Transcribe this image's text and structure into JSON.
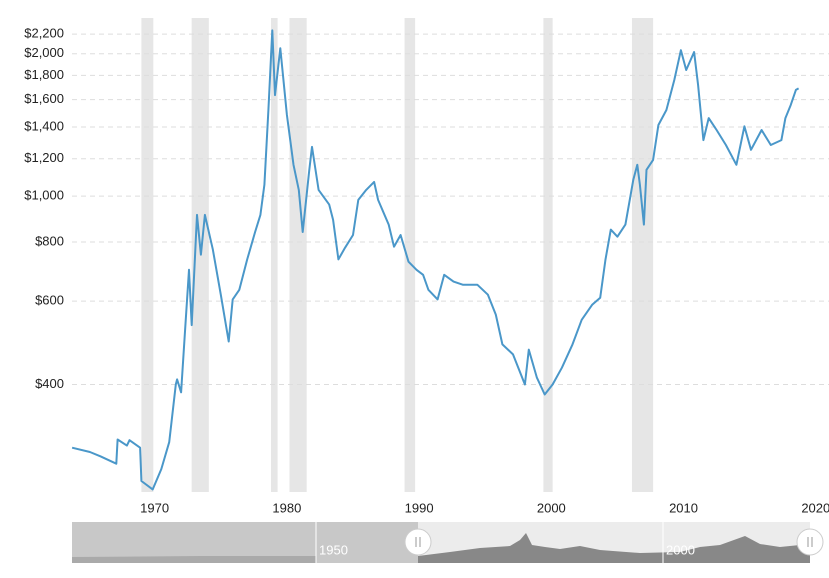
{
  "chart_data": {
    "type": "line",
    "log_y": true,
    "grid": true,
    "shade_color": "#e6e6e6",
    "xlim": [
      1963.75,
      2021
    ],
    "xticks": [
      1970,
      1980,
      1990,
      2000,
      2010,
      2020
    ],
    "ylim": [
      237,
      2380
    ],
    "yticks": [
      {
        "value": 400,
        "label": "$400"
      },
      {
        "value": 600,
        "label": "$600"
      },
      {
        "value": 800,
        "label": "$800"
      },
      {
        "value": 1000,
        "label": "$1,000"
      },
      {
        "value": 1200,
        "label": "$1,200"
      },
      {
        "value": 1400,
        "label": "$1,400"
      },
      {
        "value": 1600,
        "label": "$1,600"
      },
      {
        "value": 1800,
        "label": "$1,800"
      },
      {
        "value": 2000,
        "label": "$2,000"
      },
      {
        "value": 2200,
        "label": "$2,200"
      }
    ],
    "shaded_ranges": [
      [
        1969.0,
        1969.9
      ],
      [
        1972.8,
        1974.1
      ],
      [
        1978.8,
        1979.3
      ],
      [
        1980.2,
        1981.5
      ],
      [
        1988.9,
        1989.7
      ],
      [
        1999.4,
        2000.1
      ],
      [
        2006.1,
        2007.7
      ]
    ],
    "x": [
      1963.76,
      1965.1,
      1965.9,
      1967.1,
      1967.2,
      1967.9,
      1968.1,
      1968.9,
      1969.0,
      1969.85,
      1970.5,
      1971.1,
      1971.6,
      1971.7,
      1972.0,
      1972.3,
      1972.6,
      1972.8,
      1973.2,
      1973.5,
      1973.8,
      1974.4,
      1975.0,
      1975.6,
      1975.9,
      1976.4,
      1977.0,
      1977.6,
      1978.0,
      1978.3,
      1978.6,
      1978.9,
      1979.1,
      1979.5,
      1980.0,
      1980.5,
      1980.9,
      1981.2,
      1981.7,
      1981.9,
      1982.4,
      1983.2,
      1983.5,
      1983.9,
      1984.4,
      1985.0,
      1985.4,
      1986.0,
      1986.6,
      1986.9,
      1987.7,
      1988.1,
      1988.6,
      1989.2,
      1989.8,
      1990.3,
      1990.7,
      1991.4,
      1991.9,
      1992.6,
      1993.3,
      1994.4,
      1995.2,
      1995.8,
      1996.3,
      1997.1,
      1997.7,
      1998.0,
      1998.3,
      1998.9,
      1999.5,
      2000.1,
      2000.8,
      2001.6,
      2002.3,
      2003.1,
      2003.7,
      2004.1,
      2004.5,
      2005.0,
      2005.6,
      2006.2,
      2006.5,
      2006.7,
      2007.0,
      2007.2,
      2007.7,
      2008.1,
      2008.7,
      2009.3,
      2009.8,
      2010.2,
      2010.8,
      2011.1,
      2011.5,
      2011.9,
      2012.5,
      2013.2,
      2014.0,
      2014.6,
      2015.1,
      2015.9,
      2016.6,
      2017.4,
      2017.7,
      2018.1,
      2018.5,
      2018.7
    ],
    "series": [
      {
        "color": "#4a97c9",
        "values": [
          294,
          288,
          282,
          272,
          306,
          297,
          305,
          294,
          250,
          240,
          265,
          302,
          400,
          410,
          385,
          522,
          699,
          534,
          913,
          752,
          913,
          772,
          619,
          493,
          605,
          634,
          735,
          840,
          913,
          1057,
          1521,
          2241,
          1635,
          2055,
          1485,
          1165,
          1031,
          840,
          1137,
          1271,
          1031,
          960,
          891,
          735,
          778,
          828,
          982,
          1031,
          1072,
          982,
          871,
          782,
          828,
          727,
          699,
          682,
          634,
          605,
          682,
          660,
          650,
          650,
          619,
          562,
          486,
          463,
          420,
          400,
          474,
          414,
          381,
          400,
          434,
          486,
          548,
          590,
          610,
          735,
          850,
          821,
          871,
          1083,
          1165,
          1057,
          871,
          1137,
          1193,
          1414,
          1521,
          1760,
          2035,
          1848,
          2017,
          1717,
          1314,
          1462,
          1380,
          1283,
          1165,
          1405,
          1253,
          1380,
          1283,
          1314,
          1462,
          1558,
          1677,
          1690
        ]
      }
    ],
    "navigator": {
      "labels": [
        "1950",
        "2000"
      ]
    }
  }
}
